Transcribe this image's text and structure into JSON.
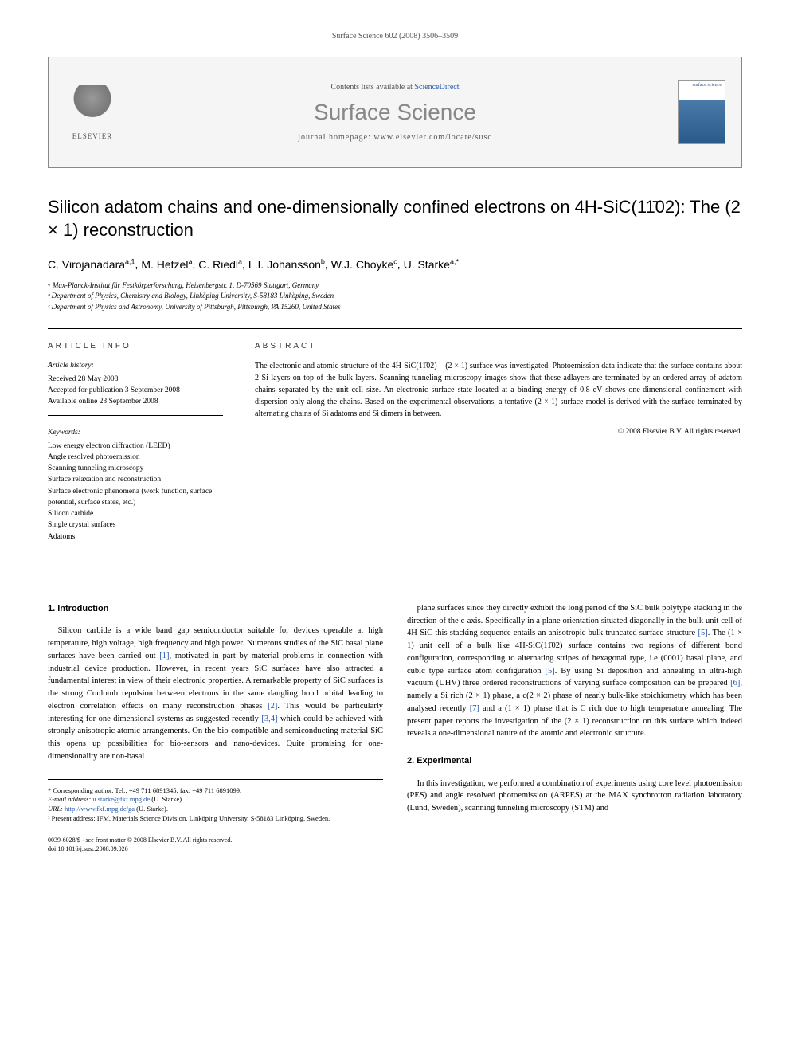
{
  "citation": "Surface Science 602 (2008) 3506–3509",
  "header": {
    "contents_prefix": "Contents lists available at ",
    "contents_link": "ScienceDirect",
    "journal_title": "Surface Science",
    "homepage_label": "journal homepage: www.elsevier.com/locate/susc",
    "publisher": "ELSEVIER",
    "cover_label": "surface science"
  },
  "article": {
    "title": "Silicon adatom chains and one-dimensionally confined electrons on 4H-SiC(11̄02): The (2 × 1) reconstruction",
    "authors_html": "C. Virojanadara",
    "authors": [
      {
        "name": "C. Virojanadara",
        "marks": "a,1"
      },
      {
        "name": "M. Hetzel",
        "marks": "a"
      },
      {
        "name": "C. Riedl",
        "marks": "a"
      },
      {
        "name": "L.I. Johansson",
        "marks": "b"
      },
      {
        "name": "W.J. Choyke",
        "marks": "c"
      },
      {
        "name": "U. Starke",
        "marks": "a,*"
      }
    ],
    "affiliations": [
      "ᵃ Max-Planck-Institut für Festkörperforschung, Heisenbergstr. 1, D-70569 Stuttgart, Germany",
      "ᵇ Department of Physics, Chemistry and Biology, Linköping University, S-58183 Linköping, Sweden",
      "ᶜ Department of Physics and Astronomy, University of Pittsburgh, Pittsburgh, PA 15260, United States"
    ]
  },
  "info": {
    "section_label": "ARTICLE INFO",
    "history_label": "Article history:",
    "history": [
      "Received 28 May 2008",
      "Accepted for publication 3 September 2008",
      "Available online 23 September 2008"
    ],
    "keywords_label": "Keywords:",
    "keywords": [
      "Low energy electron diffraction (LEED)",
      "Angle resolved photoemission",
      "Scanning tunneling microscopy",
      "Surface relaxation and reconstruction",
      "Surface electronic phenomena (work function, surface potential, surface states, etc.)",
      "Silicon carbide",
      "Single crystal surfaces",
      "Adatoms"
    ]
  },
  "abstract": {
    "section_label": "ABSTRACT",
    "text": "The electronic and atomic structure of the 4H-SiC(11̄02) – (2 × 1) surface was investigated. Photoemission data indicate that the surface contains about 2 Si layers on top of the bulk layers. Scanning tunneling microscopy images show that these adlayers are terminated by an ordered array of adatom chains separated by the unit cell size. An electronic surface state located at a binding energy of 0.8 eV shows one-dimensional confinement with dispersion only along the chains. Based on the experimental observations, a tentative (2 × 1) surface model is derived with the surface terminated by alternating chains of Si adatoms and Si dimers in between.",
    "copyright": "© 2008 Elsevier B.V. All rights reserved."
  },
  "sections": {
    "intro_heading": "1. Introduction",
    "intro_para1": "Silicon carbide is a wide band gap semiconductor suitable for devices operable at high temperature, high voltage, high frequency and high power. Numerous studies of the SiC basal plane surfaces have been carried out [1], motivated in part by material problems in connection with industrial device production. However, in recent years SiC surfaces have also attracted a fundamental interest in view of their electronic properties. A remarkable property of SiC surfaces is the strong Coulomb repulsion between electrons in the same dangling bond orbital leading to electron correlation effects on many reconstruction phases [2]. This would be particularly interesting for one-dimensional systems as suggested recently [3,4] which could be achieved with strongly anisotropic atomic arrangements. On the bio-compatible and semiconducting material SiC this opens up possibilities for bio-sensors and nano-devices. Quite promising for one-dimensionality are non-basal",
    "intro_para2": "plane surfaces since they directly exhibit the long period of the SiC bulk polytype stacking in the direction of the c-axis. Specifically in a plane orientation situated diagonally in the bulk unit cell of 4H-SiC this stacking sequence entails an anisotropic bulk truncated surface structure [5]. The (1 × 1) unit cell of a bulk like 4H-SiC(11̄02) surface contains two regions of different bond configuration, corresponding to alternating stripes of hexagonal type, i.e (0001) basal plane, and cubic type surface atom configuration [5]. By using Si deposition and annealing in ultra-high vacuum (UHV) three ordered reconstructions of varying surface composition can be prepared [6], namely a Si rich (2 × 1) phase, a c(2 × 2) phase of nearly bulk-like stoichiometry which has been analysed recently [7] and a (1 × 1) phase that is C rich due to high temperature annealing. The present paper reports the investigation of the (2 × 1) reconstruction on this surface which indeed reveals a one-dimensional nature of the atomic and electronic structure.",
    "exp_heading": "2. Experimental",
    "exp_para": "In this investigation, we performed a combination of experiments using core level photoemission (PES) and angle resolved photoemission (ARPES) at the MAX synchrotron radiation laboratory (Lund, Sweden), scanning tunneling microscopy (STM) and"
  },
  "footer": {
    "corresponding_label": "* Corresponding author. Tel.: +49 711 6891345; fax: +49 711 6891099.",
    "email_label": "E-mail address:",
    "email": "u.starke@fkf.mpg.de",
    "email_suffix": "(U. Starke).",
    "url_label": "URL:",
    "url": "http://www.fkf.mpg.de/ga",
    "url_suffix": "(U. Starke).",
    "present_address": "¹ Present address: IFM, Materials Science Division, Linköping University, S-58183 Linköping, Sweden.",
    "issn_line": "0039-6028/$ - see front matter © 2008 Elsevier B.V. All rights reserved.",
    "doi": "doi:10.1016/j.susc.2008.09.026"
  },
  "refs": {
    "r1": "[1]",
    "r2": "[2]",
    "r34": "[3,4]",
    "r5a": "[5]",
    "r5b": "[5]",
    "r6": "[6]",
    "r7": "[7]"
  },
  "colors": {
    "link": "#2255aa",
    "header_bg": "#f5f5f5",
    "journal_title": "#888888",
    "text": "#000000"
  }
}
